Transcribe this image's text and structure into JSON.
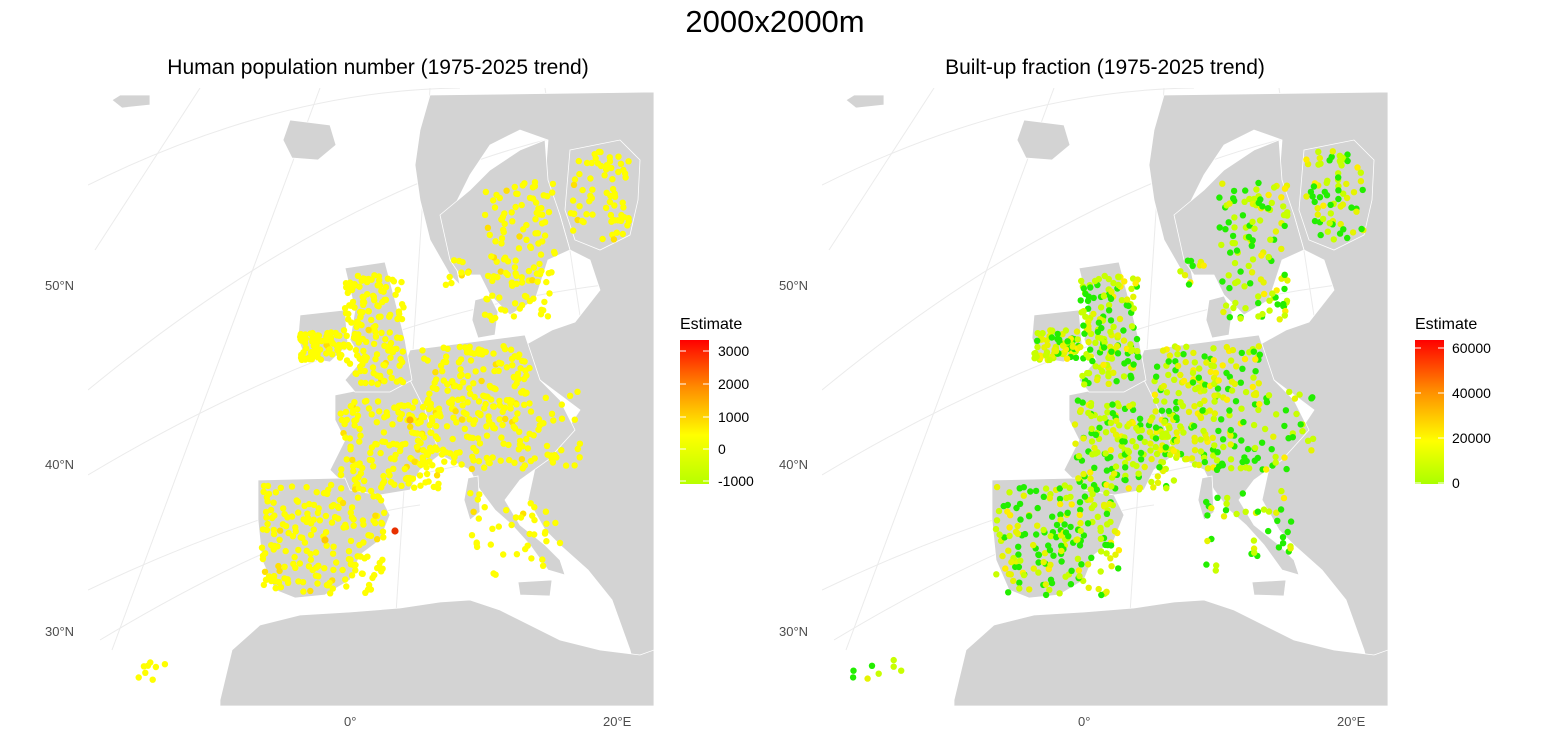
{
  "figure_title": "2000x2000m",
  "panels": [
    {
      "title": "Human population number (1975-2025 trend)",
      "legend": {
        "title": "Estimate",
        "ticks": [
          "3000",
          "2000",
          "1000",
          "0",
          "-1000"
        ],
        "gradient_colors": [
          "#FF0000",
          "#FF8C00",
          "#FFFF00",
          "#B7FF00"
        ]
      },
      "point_color_default": "#FFFF00"
    },
    {
      "title": "Built-up fraction (1975-2025 trend)",
      "legend": {
        "title": "Estimate",
        "ticks": [
          "60000",
          "40000",
          "20000",
          "0"
        ],
        "gradient_colors": [
          "#FF0000",
          "#FF8C00",
          "#FFFF00",
          "#AAFF00"
        ]
      },
      "point_color_default": "#C8FF00"
    }
  ],
  "axes": {
    "lat_labels": [
      "50°N",
      "40°N",
      "30°N"
    ],
    "lon_labels": [
      "0°",
      "20°E"
    ]
  },
  "colors": {
    "land": "#D3D3D3",
    "graticule": "#EBEBEB",
    "borders": "#FFFFFF"
  }
}
